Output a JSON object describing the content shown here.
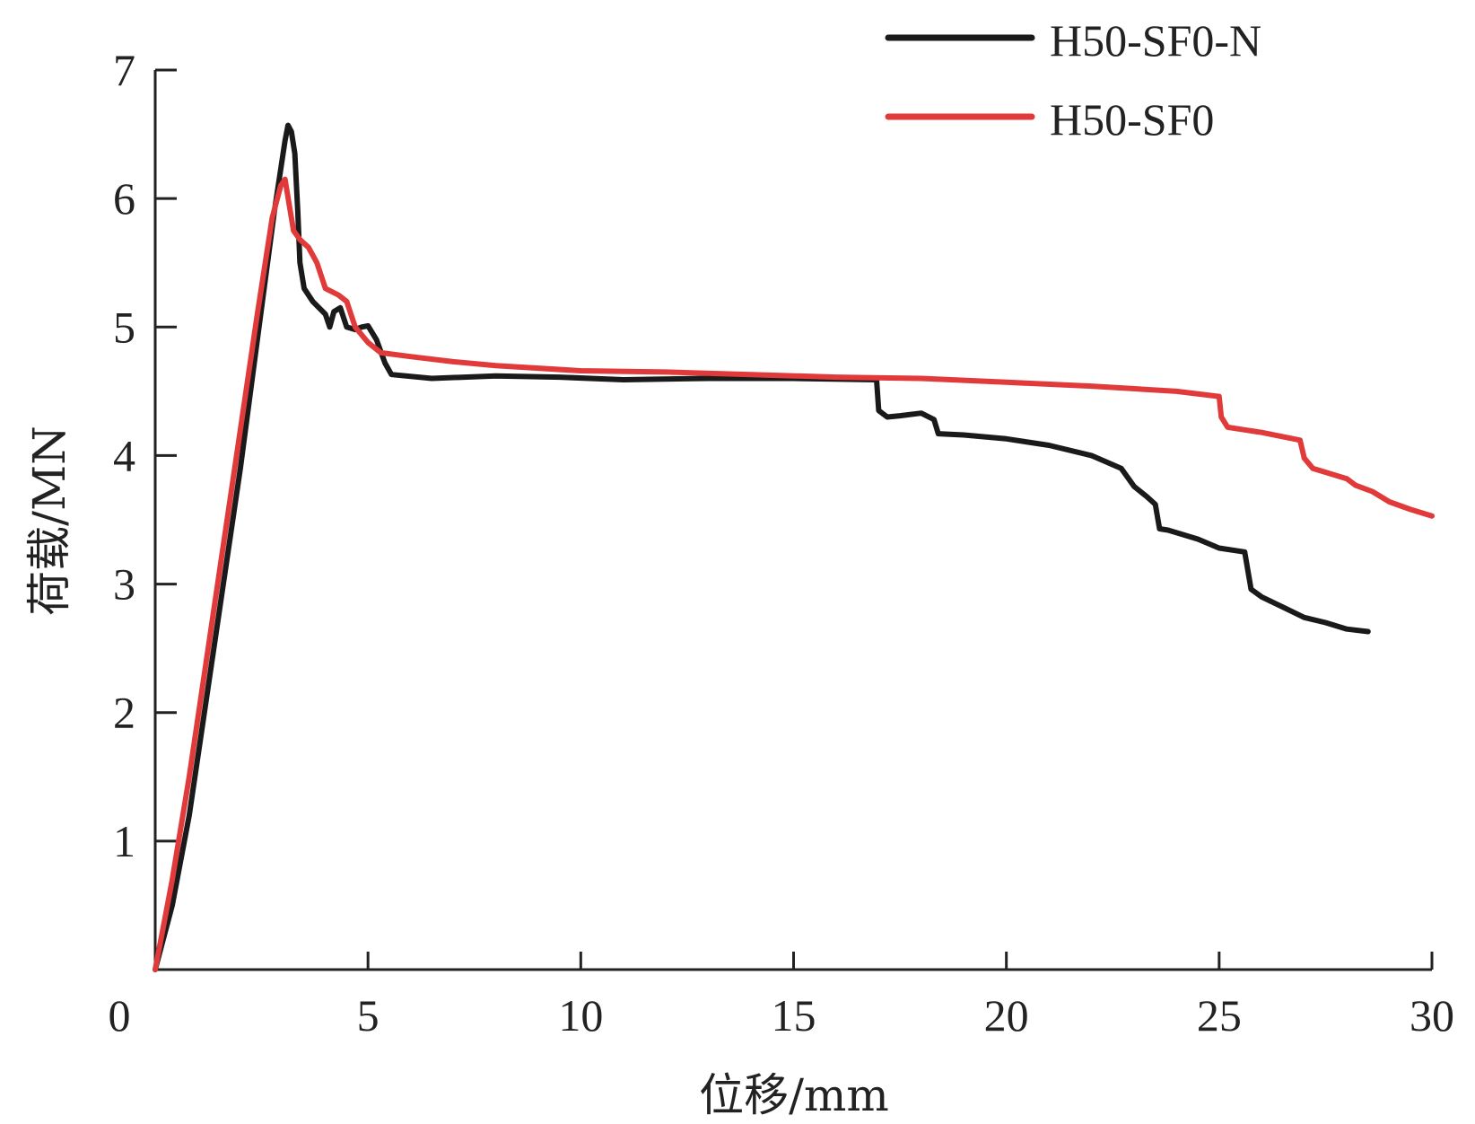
{
  "chart_data": {
    "type": "line",
    "xlabel": "位移/mm",
    "ylabel": "荷载/MN",
    "xlim": [
      0,
      30
    ],
    "ylim": [
      0,
      7
    ],
    "xticks": [
      0,
      5,
      10,
      15,
      20,
      25,
      30
    ],
    "yticks": [
      1,
      2,
      3,
      4,
      5,
      6,
      7
    ],
    "grid": false,
    "legend_position": "top-right",
    "series": [
      {
        "name": "H50-SF0-N",
        "color": "#1a1a1a",
        "points": [
          [
            0.0,
            0.0
          ],
          [
            0.4,
            0.5
          ],
          [
            0.8,
            1.2
          ],
          [
            1.2,
            2.1
          ],
          [
            1.6,
            3.0
          ],
          [
            2.0,
            3.9
          ],
          [
            2.4,
            4.9
          ],
          [
            2.8,
            5.9
          ],
          [
            3.05,
            6.45
          ],
          [
            3.12,
            6.57
          ],
          [
            3.2,
            6.52
          ],
          [
            3.28,
            6.35
          ],
          [
            3.35,
            5.9
          ],
          [
            3.4,
            5.5
          ],
          [
            3.5,
            5.3
          ],
          [
            3.7,
            5.2
          ],
          [
            4.0,
            5.1
          ],
          [
            4.1,
            5.0
          ],
          [
            4.2,
            5.12
          ],
          [
            4.35,
            5.15
          ],
          [
            4.5,
            5.0
          ],
          [
            4.7,
            4.98
          ],
          [
            4.85,
            5.0
          ],
          [
            5.0,
            5.01
          ],
          [
            5.2,
            4.9
          ],
          [
            5.4,
            4.72
          ],
          [
            5.55,
            4.63
          ],
          [
            6.5,
            4.6
          ],
          [
            8.0,
            4.62
          ],
          [
            9.5,
            4.61
          ],
          [
            11.0,
            4.59
          ],
          [
            13.0,
            4.6
          ],
          [
            15.0,
            4.6
          ],
          [
            16.95,
            4.59
          ],
          [
            17.0,
            4.35
          ],
          [
            17.2,
            4.3
          ],
          [
            17.5,
            4.31
          ],
          [
            18.0,
            4.33
          ],
          [
            18.3,
            4.28
          ],
          [
            18.4,
            4.17
          ],
          [
            19.0,
            4.16
          ],
          [
            20.0,
            4.13
          ],
          [
            21.0,
            4.08
          ],
          [
            22.0,
            4.0
          ],
          [
            22.7,
            3.9
          ],
          [
            23.0,
            3.76
          ],
          [
            23.3,
            3.68
          ],
          [
            23.5,
            3.62
          ],
          [
            23.6,
            3.43
          ],
          [
            23.8,
            3.42
          ],
          [
            24.5,
            3.35
          ],
          [
            25.0,
            3.28
          ],
          [
            25.6,
            3.25
          ],
          [
            25.75,
            2.96
          ],
          [
            26.0,
            2.9
          ],
          [
            26.5,
            2.82
          ],
          [
            27.0,
            2.74
          ],
          [
            27.5,
            2.7
          ],
          [
            28.0,
            2.65
          ],
          [
            28.5,
            2.63
          ]
        ]
      },
      {
        "name": "H50-SF0",
        "color": "#e03a3a",
        "points": [
          [
            0.0,
            0.0
          ],
          [
            0.4,
            0.7
          ],
          [
            0.8,
            1.5
          ],
          [
            1.2,
            2.4
          ],
          [
            1.6,
            3.3
          ],
          [
            2.0,
            4.2
          ],
          [
            2.4,
            5.1
          ],
          [
            2.75,
            5.85
          ],
          [
            2.95,
            6.1
          ],
          [
            3.05,
            6.15
          ],
          [
            3.15,
            5.95
          ],
          [
            3.25,
            5.75
          ],
          [
            3.4,
            5.68
          ],
          [
            3.6,
            5.62
          ],
          [
            3.8,
            5.5
          ],
          [
            4.0,
            5.3
          ],
          [
            4.3,
            5.25
          ],
          [
            4.5,
            5.2
          ],
          [
            4.7,
            5.0
          ],
          [
            5.0,
            4.88
          ],
          [
            5.3,
            4.8
          ],
          [
            6.0,
            4.77
          ],
          [
            7.0,
            4.73
          ],
          [
            8.0,
            4.7
          ],
          [
            10.0,
            4.66
          ],
          [
            12.0,
            4.65
          ],
          [
            14.0,
            4.63
          ],
          [
            16.0,
            4.61
          ],
          [
            18.0,
            4.6
          ],
          [
            20.0,
            4.57
          ],
          [
            22.0,
            4.54
          ],
          [
            24.0,
            4.5
          ],
          [
            25.0,
            4.46
          ],
          [
            25.05,
            4.3
          ],
          [
            25.2,
            4.22
          ],
          [
            25.6,
            4.2
          ],
          [
            26.0,
            4.18
          ],
          [
            26.9,
            4.12
          ],
          [
            27.0,
            3.98
          ],
          [
            27.2,
            3.9
          ],
          [
            27.6,
            3.86
          ],
          [
            28.0,
            3.82
          ],
          [
            28.2,
            3.77
          ],
          [
            28.6,
            3.72
          ],
          [
            29.0,
            3.64
          ],
          [
            29.5,
            3.58
          ],
          [
            30.0,
            3.53
          ]
        ]
      }
    ]
  }
}
